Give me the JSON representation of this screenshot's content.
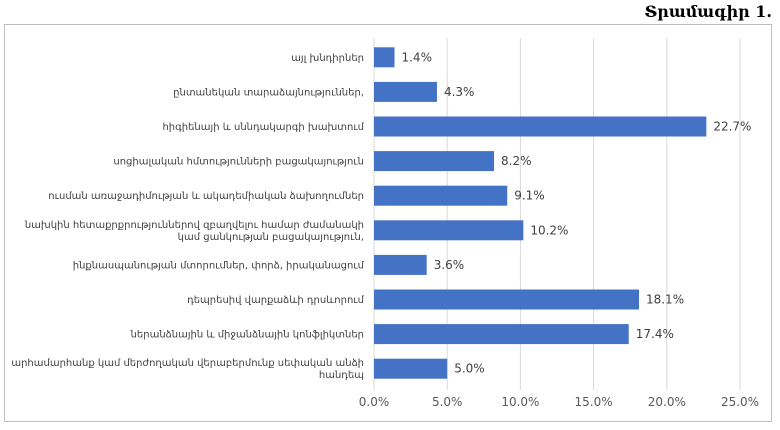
{
  "header": {
    "figure_label": "Տրամագիր 1."
  },
  "chart_data": {
    "type": "bar",
    "orientation": "horizontal",
    "title": "",
    "xlabel": "",
    "ylabel": "",
    "xlim": [
      0,
      25
    ],
    "grid": true,
    "legend": "none",
    "bar_color": "#4472c4",
    "value_format": "percent_1dp",
    "categories": [
      [
        "այլ խնդիրներ"
      ],
      [
        "ընտանեկան տարաձայնություններ,"
      ],
      [
        "հիգիենայի և սննդակարգի խախտում"
      ],
      [
        "սոցիալական հմտությունների բացակայություն"
      ],
      [
        "ուսման առաջադիմության և ակադեմիական ձախողումներ"
      ],
      [
        "նախկին հետաքրքրություններով զբաղվելու համար ժամանակի",
        "կամ ցանկության բացակայություն,"
      ],
      [
        "ինքնասպանության մտորումներ, փորձ, իրականացում"
      ],
      [
        "դեպրեսիվ վարքաձևի դրսևորում"
      ],
      [
        "ներանձնային և միջանձնային կոնֆլիկտներ"
      ],
      [
        "արհամարհանք կամ մերժողական վերաբերմունք սեփական անձի",
        "հանդեպ"
      ]
    ],
    "values": [
      1.4,
      4.3,
      22.7,
      8.2,
      9.1,
      10.2,
      3.6,
      18.1,
      17.4,
      5.0
    ],
    "value_labels": [
      "1.4%",
      "4.3%",
      "22.7%",
      "8.2%",
      "9.1%",
      "10.2%",
      "3.6%",
      "18.1%",
      "17.4%",
      "5.0%"
    ],
    "ticks": [
      0,
      5,
      10,
      15,
      20,
      25
    ],
    "tick_labels": [
      "0.0%",
      "5.0%",
      "10.0%",
      "15.0%",
      "20.0%",
      "25.0%"
    ]
  }
}
